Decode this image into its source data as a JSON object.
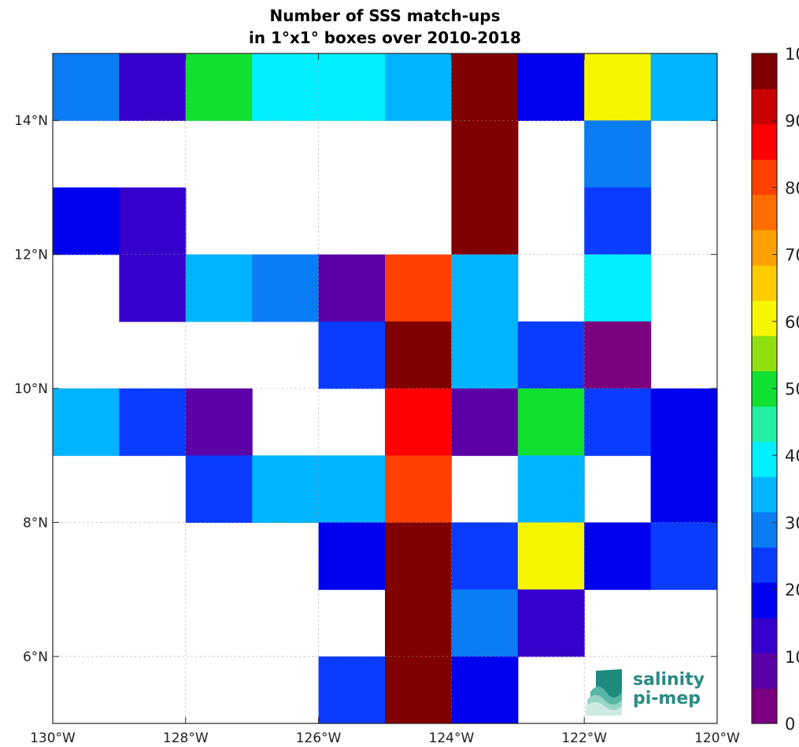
{
  "chart_data": {
    "type": "heatmap",
    "title_line1": "Number of SSS match-ups",
    "title_line2": "in 1°x1° boxes over 2010-2018",
    "xlim": [
      -130,
      -120
    ],
    "ylim": [
      5,
      15
    ],
    "x_ticks": [
      -130,
      -128,
      -126,
      -124,
      -122,
      -120
    ],
    "x_tick_labels": [
      "130°W",
      "128°W",
      "126°W",
      "124°W",
      "122°W",
      "120°W"
    ],
    "y_ticks": [
      6,
      8,
      10,
      12,
      14
    ],
    "y_tick_labels": [
      "6°N",
      "8°N",
      "10°N",
      "12°N",
      "14°N"
    ],
    "grid": true,
    "colorbar": {
      "min": 0,
      "max": 100,
      "ticks": [
        0,
        10,
        20,
        30,
        40,
        50,
        60,
        70,
        80,
        90,
        100
      ],
      "tick_labels": [
        "0",
        "10",
        "20",
        "30",
        "40",
        "50",
        "60",
        "70",
        "80",
        "90",
        "100"
      ],
      "colors": [
        "#7b007f",
        "#5a00a6",
        "#3600cc",
        "#0000f0",
        "#0a3cff",
        "#0a7cf4",
        "#00b4ff",
        "#00f0ff",
        "#20f0a0",
        "#10e030",
        "#90e010",
        "#f6f600",
        "#ffcc00",
        "#ffa000",
        "#ff6e00",
        "#ff4000",
        "#ff0000",
        "#c80000",
        "#800000"
      ]
    },
    "lon_centers": [
      -129.5,
      -128.5,
      -127.5,
      -126.5,
      -125.5,
      -124.5,
      -123.5,
      -122.5,
      -121.5,
      -120.5
    ],
    "lat_rows_top_to_bottom": [
      14.5,
      13.5,
      12.5,
      11.5,
      10.5,
      9.5,
      8.5,
      7.5,
      6.5,
      5.5
    ],
    "values": [
      [
        27,
        12,
        52,
        38,
        38,
        33,
        100,
        17,
        60,
        33
      ],
      [
        null,
        null,
        null,
        null,
        null,
        null,
        100,
        null,
        27,
        null
      ],
      [
        20,
        12,
        null,
        null,
        null,
        null,
        100,
        null,
        22,
        null
      ],
      [
        null,
        12,
        33,
        27,
        8,
        80,
        33,
        null,
        38,
        null
      ],
      [
        null,
        null,
        null,
        null,
        22,
        100,
        33,
        22,
        5,
        null
      ],
      [
        33,
        22,
        8,
        null,
        null,
        85,
        10,
        50,
        22,
        17
      ],
      [
        null,
        null,
        22,
        33,
        33,
        80,
        null,
        33,
        null,
        17
      ],
      [
        null,
        null,
        null,
        null,
        17,
        100,
        22,
        60,
        17,
        22
      ],
      [
        null,
        null,
        null,
        null,
        null,
        100,
        27,
        12,
        null,
        null
      ],
      [
        null,
        null,
        null,
        null,
        22,
        100,
        20,
        null,
        null,
        null
      ]
    ]
  },
  "logo": {
    "line1": "salinity",
    "line2": "pi-mep"
  }
}
